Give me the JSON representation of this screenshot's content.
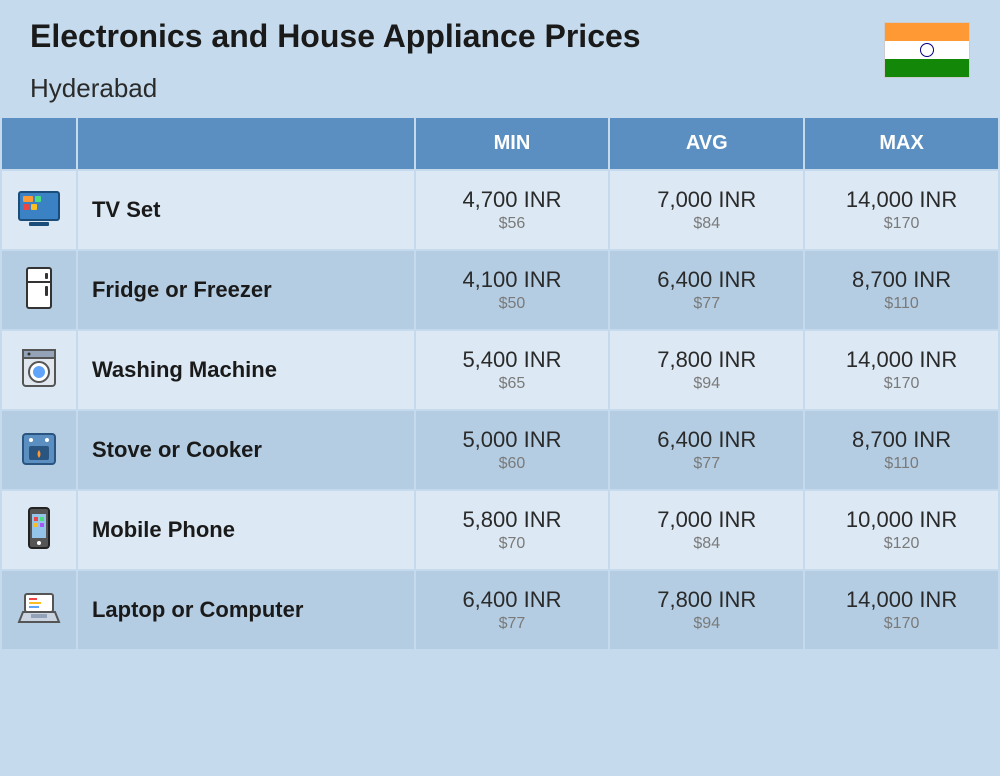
{
  "header": {
    "title": "Electronics and House Appliance Prices",
    "subtitle": "Hyderabad"
  },
  "columns": {
    "min": "MIN",
    "avg": "AVG",
    "max": "MAX"
  },
  "rows": [
    {
      "name": "TV Set",
      "icon": "tv-icon",
      "min_inr": "4,700 INR",
      "min_usd": "$56",
      "avg_inr": "7,000 INR",
      "avg_usd": "$84",
      "max_inr": "14,000 INR",
      "max_usd": "$170"
    },
    {
      "name": "Fridge or Freezer",
      "icon": "fridge-icon",
      "min_inr": "4,100 INR",
      "min_usd": "$50",
      "avg_inr": "6,400 INR",
      "avg_usd": "$77",
      "max_inr": "8,700 INR",
      "max_usd": "$110"
    },
    {
      "name": "Washing Machine",
      "icon": "washer-icon",
      "min_inr": "5,400 INR",
      "min_usd": "$65",
      "avg_inr": "7,800 INR",
      "avg_usd": "$94",
      "max_inr": "14,000 INR",
      "max_usd": "$170"
    },
    {
      "name": "Stove or Cooker",
      "icon": "stove-icon",
      "min_inr": "5,000 INR",
      "min_usd": "$60",
      "avg_inr": "6,400 INR",
      "avg_usd": "$77",
      "max_inr": "8,700 INR",
      "max_usd": "$110"
    },
    {
      "name": "Mobile Phone",
      "icon": "phone-icon",
      "min_inr": "5,800 INR",
      "min_usd": "$70",
      "avg_inr": "7,000 INR",
      "avg_usd": "$84",
      "max_inr": "10,000 INR",
      "max_usd": "$120"
    },
    {
      "name": "Laptop or Computer",
      "icon": "laptop-icon",
      "min_inr": "6,400 INR",
      "min_usd": "$77",
      "avg_inr": "7,800 INR",
      "avg_usd": "$94",
      "max_inr": "14,000 INR",
      "max_usd": "$170"
    }
  ],
  "colors": {
    "page_bg": "#c5dbed",
    "header_bg": "#5b8fc2",
    "row_odd": "#dce8f3",
    "row_even": "#b4cde3",
    "text_main": "#1a1a1a",
    "text_usd": "#7a7a7a"
  }
}
